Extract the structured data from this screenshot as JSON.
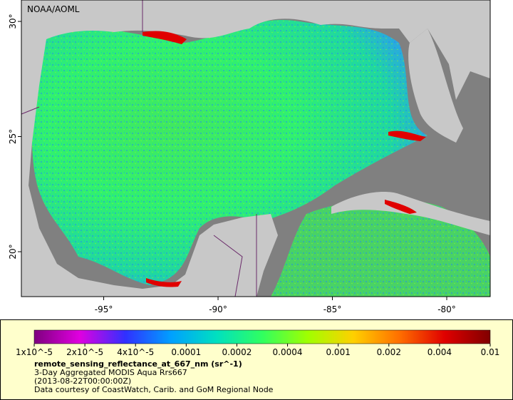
{
  "header": {
    "credit": "NOAA/AOML"
  },
  "map": {
    "lonlim": [
      -98.6,
      -78.1
    ],
    "latlim": [
      18.05,
      30.93
    ],
    "lonticks": [
      {
        "value": -95,
        "label": "-95°"
      },
      {
        "value": -90,
        "label": "-90°"
      },
      {
        "value": -85,
        "label": "-85°"
      },
      {
        "value": -80,
        "label": "-80°"
      }
    ],
    "latticks": [
      {
        "value": 20,
        "label": "20°"
      },
      {
        "value": 25,
        "label": "25°"
      },
      {
        "value": 30,
        "label": "30°"
      }
    ]
  },
  "legend": {
    "colorbar": {
      "scale": "log",
      "colors": [
        "#7f007f",
        "#e000e0",
        "#3030ff",
        "#00a0ff",
        "#00e0c0",
        "#30ff60",
        "#a0ff00",
        "#ffd000",
        "#ff7000",
        "#e00000",
        "#800000"
      ],
      "ticks": [
        {
          "value": 1e-05,
          "label": "1x10^-5"
        },
        {
          "value": 2e-05,
          "label": "2x10^-5"
        },
        {
          "value": 4e-05,
          "label": "4x10^-5"
        },
        {
          "value": 0.0001,
          "label": "0.0001"
        },
        {
          "value": 0.0002,
          "label": "0.0002"
        },
        {
          "value": 0.0004,
          "label": "0.0004"
        },
        {
          "value": 0.001,
          "label": "0.001"
        },
        {
          "value": 0.002,
          "label": "0.002"
        },
        {
          "value": 0.004,
          "label": "0.004"
        },
        {
          "value": 0.01,
          "label": "0.01"
        }
      ]
    },
    "variable": "remote_sensing_reflectance_at_667_nm (sr^-1)",
    "lines": [
      "3-Day Aggregated MODIS Aqua Rrs667",
      "(2013-08-22T00:00:00Z)",
      "Data courtesy of CoastWatch, Carib. and GoM Regional Node"
    ]
  }
}
